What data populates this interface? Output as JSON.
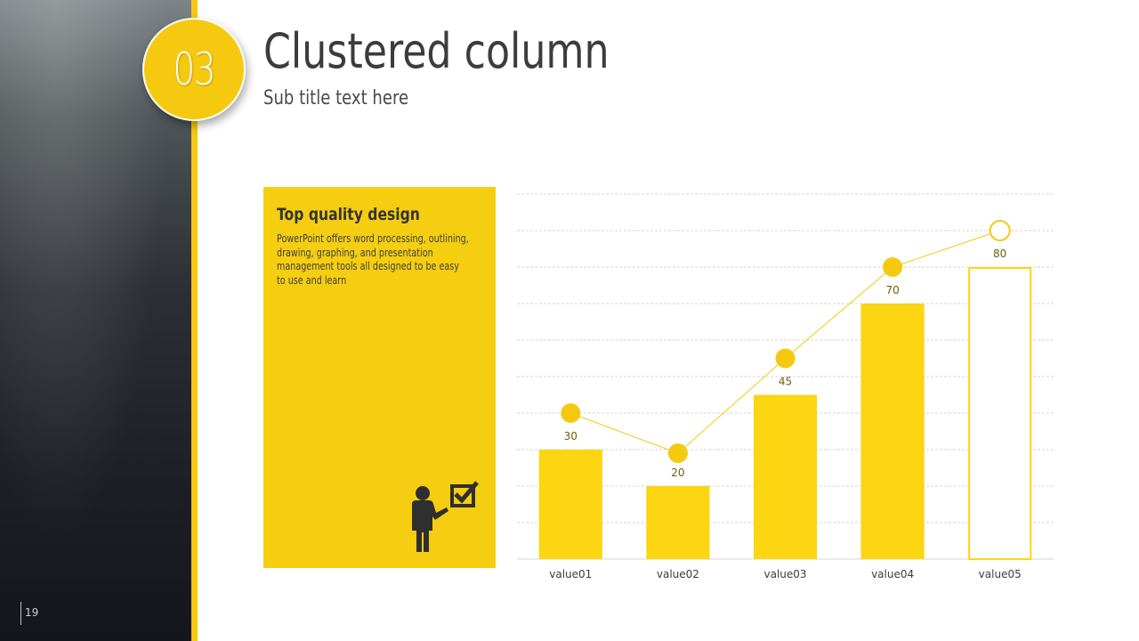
{
  "slide": {
    "badge_number": "03",
    "title": "Clustered column",
    "subtitle": "Sub title text here",
    "page_number": "19"
  },
  "card": {
    "title": "Top quality design",
    "body": "PowerPoint offers word processing, outlining, drawing, graphing, and presentation management tools all designed to be easy to use and learn",
    "icon": "presenter-checkmark-icon"
  },
  "colors": {
    "accent": "#f5c90f",
    "bar": "#fcd513",
    "line": "#f5c90f",
    "text_dark": "#3c3c3c",
    "label": "#6b5f10"
  },
  "chart_data": {
    "type": "bar",
    "categories": [
      "value01",
      "value02",
      "value03",
      "value04",
      "value05"
    ],
    "values": [
      30,
      20,
      45,
      70,
      80
    ],
    "line_series": [
      40,
      29,
      55,
      80,
      90
    ],
    "last_bar_outlined": true,
    "ylim": [
      0,
      100
    ],
    "grid": true,
    "title": "",
    "xlabel": "",
    "ylabel": ""
  }
}
